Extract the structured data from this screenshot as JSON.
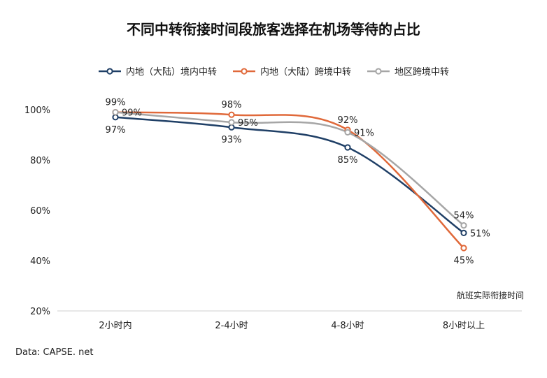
{
  "chart_data": {
    "type": "line",
    "title": "不同中转衔接时间段旅客选择在机场等待的占比",
    "xlabel": "航班实际衔接时间",
    "ylabel": "",
    "categories": [
      "2小时内",
      "2-4小时",
      "4-8小时",
      "8小时以上"
    ],
    "ylim": [
      20,
      100
    ],
    "yticks": [
      20,
      40,
      60,
      80,
      100
    ],
    "ytick_labels": [
      "20%",
      "40%",
      "60%",
      "80%",
      "100%"
    ],
    "grid": false,
    "legend": "top",
    "series": [
      {
        "name": "内地（大陆）境内中转",
        "color": "#1f3f66",
        "values": [
          97,
          93,
          85,
          51
        ],
        "labels": [
          "97%",
          "93%",
          "85%",
          "51%"
        ],
        "label_pos": [
          "below",
          "below",
          "below",
          "right"
        ]
      },
      {
        "name": "内地（大陆）跨境中转",
        "color": "#e0693a",
        "values": [
          99,
          98,
          92,
          45
        ],
        "labels": [
          "99%",
          "98%",
          "92%",
          "45%"
        ],
        "label_pos": [
          "above",
          "above",
          "above",
          "below"
        ]
      },
      {
        "name": "地区跨境中转",
        "color": "#a6a6a6",
        "values": [
          99,
          95,
          91,
          54
        ],
        "labels": [
          "99%",
          "95%",
          "91%",
          "54%"
        ],
        "label_pos": [
          "right",
          "right",
          "right",
          "above"
        ]
      }
    ]
  },
  "source": "Data: CAPSE. net"
}
